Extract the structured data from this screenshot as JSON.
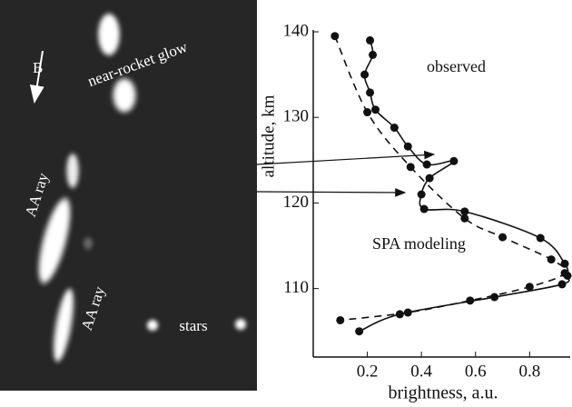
{
  "chart_data": {
    "type": "line",
    "xlabel": "brightness, a.u.",
    "ylabel": "altitude, km",
    "xlim": [
      0,
      0.95
    ],
    "ylim": [
      102,
      140
    ],
    "xticks": [
      0.2,
      0.4,
      0.6,
      0.8
    ],
    "yticks": [
      110,
      120,
      130,
      140
    ],
    "series": [
      {
        "name": "observed",
        "color": "#111111",
        "dashed": false,
        "x": [
          0.21,
          0.22,
          0.19,
          0.21,
          0.23,
          0.3,
          0.35,
          0.42,
          0.52,
          0.43,
          0.4,
          0.41,
          0.56,
          0.84,
          0.93,
          0.94,
          0.92,
          0.67,
          0.32,
          0.17
        ],
        "values": [
          139,
          137.3,
          135,
          132.9,
          130.9,
          128.8,
          126.6,
          124.5,
          124.9,
          122.9,
          121,
          119.3,
          119,
          115.9,
          112.9,
          111.5,
          110.5,
          109,
          107,
          105
        ]
      },
      {
        "name": "SPA modeling",
        "color": "#111111",
        "dashed": true,
        "x": [
          0.08,
          0.2,
          0.36,
          0.56,
          0.7,
          0.88,
          0.93,
          0.8,
          0.58,
          0.35,
          0.1
        ],
        "values": [
          139.5,
          130.6,
          124.2,
          118.2,
          116,
          113.4,
          111.8,
          110.2,
          108.6,
          107.2,
          106.3
        ]
      }
    ],
    "annotations": [
      "B",
      "near-rocket glow",
      "AA ray",
      "AA ray",
      "stars"
    ]
  }
}
